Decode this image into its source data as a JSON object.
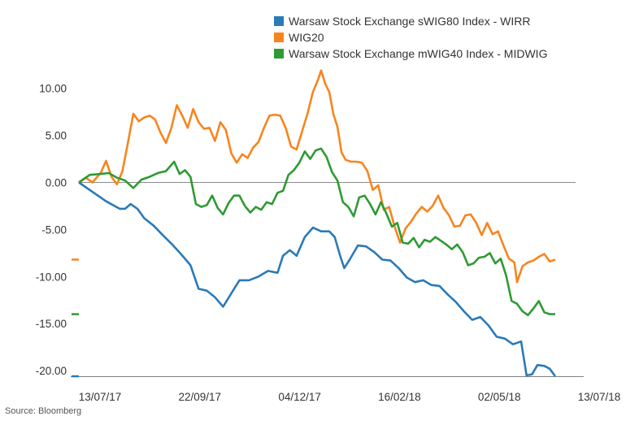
{
  "chart_data": {
    "type": "line",
    "title": "",
    "xlabel": "",
    "ylabel": "",
    "x_ticks": [
      "13/07/17",
      "22/09/17",
      "04/12/17",
      "16/02/18",
      "02/05/18",
      "13/07/18"
    ],
    "y_ticks": [
      "10.00",
      "5.00",
      "0.00",
      "-5.00",
      "-10.00",
      "-15.00",
      "-20.00"
    ],
    "ylim": [
      -20.7,
      12
    ],
    "xlim": [
      0,
      365
    ],
    "grid": false,
    "zero_line": true,
    "legend_position": "top",
    "series": [
      {
        "name": "Warsaw Stock Exchange sWIG80 Index - WIRR",
        "color": "#2a7ab8",
        "last_value": -20.6,
        "points": [
          [
            0,
            0
          ],
          [
            10,
            -1
          ],
          [
            20,
            -2
          ],
          [
            30,
            -2.8
          ],
          [
            34,
            -2.8
          ],
          [
            38,
            -2.3
          ],
          [
            43,
            -2.8
          ],
          [
            48,
            -3.8
          ],
          [
            55,
            -4.6
          ],
          [
            61,
            -5.5
          ],
          [
            68,
            -6.5
          ],
          [
            75,
            -7.6
          ],
          [
            82,
            -8.8
          ],
          [
            88,
            -11.3
          ],
          [
            94,
            -11.5
          ],
          [
            100,
            -12.2
          ],
          [
            106,
            -13.2
          ],
          [
            112,
            -11.8
          ],
          [
            118,
            -10.4
          ],
          [
            125,
            -10.4
          ],
          [
            132,
            -10
          ],
          [
            139,
            -9.4
          ],
          [
            146,
            -9.6
          ],
          [
            150,
            -7.8
          ],
          [
            155,
            -7.2
          ],
          [
            160,
            -7.8
          ],
          [
            166,
            -5.8
          ],
          [
            172,
            -4.8
          ],
          [
            178,
            -5.2
          ],
          [
            184,
            -5.2
          ],
          [
            188,
            -5.8
          ],
          [
            192,
            -7.8
          ],
          [
            195,
            -9.1
          ],
          [
            199,
            -8.2
          ],
          [
            205,
            -6.7
          ],
          [
            211,
            -6.8
          ],
          [
            217,
            -7.4
          ],
          [
            223,
            -8.2
          ],
          [
            229,
            -8.3
          ],
          [
            235,
            -9.1
          ],
          [
            241,
            -10.1
          ],
          [
            247,
            -10.6
          ],
          [
            253,
            -10.4
          ],
          [
            259,
            -10.9
          ],
          [
            265,
            -11
          ],
          [
            271,
            -11.9
          ],
          [
            277,
            -12.7
          ],
          [
            283,
            -13.7
          ],
          [
            289,
            -14.6
          ],
          [
            295,
            -14.3
          ],
          [
            301,
            -15.2
          ],
          [
            307,
            -16.4
          ],
          [
            313,
            -16.6
          ],
          [
            319,
            -17.2
          ],
          [
            325,
            -16.9
          ],
          [
            329,
            -20.5
          ],
          [
            333,
            -20.4
          ],
          [
            337,
            -19.4
          ],
          [
            342,
            -19.5
          ],
          [
            346,
            -19.8
          ],
          [
            350,
            -20.6
          ]
        ]
      },
      {
        "name": "WIG20",
        "color": "#f7851f",
        "last_value": -8.2,
        "points": [
          [
            0,
            0
          ],
          [
            5,
            0.5
          ],
          [
            10,
            0
          ],
          [
            16,
            1
          ],
          [
            20,
            2.3
          ],
          [
            24,
            0.6
          ],
          [
            28,
            -0.2
          ],
          [
            32,
            1.2
          ],
          [
            36,
            4.2
          ],
          [
            40,
            7.3
          ],
          [
            44,
            6.5
          ],
          [
            48,
            6.9
          ],
          [
            52,
            7.1
          ],
          [
            56,
            6.7
          ],
          [
            60,
            5.3
          ],
          [
            64,
            4.2
          ],
          [
            68,
            5.8
          ],
          [
            72,
            8.2
          ],
          [
            76,
            7.1
          ],
          [
            80,
            5.8
          ],
          [
            84,
            7.8
          ],
          [
            88,
            6.4
          ],
          [
            92,
            5.7
          ],
          [
            96,
            5.8
          ],
          [
            100,
            4.4
          ],
          [
            104,
            6.4
          ],
          [
            108,
            5.6
          ],
          [
            112,
            3.1
          ],
          [
            116,
            2.1
          ],
          [
            120,
            3
          ],
          [
            124,
            2.6
          ],
          [
            128,
            3.7
          ],
          [
            132,
            4.3
          ],
          [
            136,
            5.8
          ],
          [
            140,
            7.1
          ],
          [
            144,
            7.2
          ],
          [
            148,
            7.1
          ],
          [
            152,
            5.8
          ],
          [
            156,
            3.8
          ],
          [
            160,
            3.5
          ],
          [
            164,
            5.4
          ],
          [
            168,
            7.3
          ],
          [
            172,
            9.6
          ],
          [
            176,
            11
          ],
          [
            178,
            11.9
          ],
          [
            181,
            10.5
          ],
          [
            184,
            9.6
          ],
          [
            187,
            7.3
          ],
          [
            190,
            5.9
          ],
          [
            193,
            3.2
          ],
          [
            196,
            2.4
          ],
          [
            200,
            2.2
          ],
          [
            204,
            2.2
          ],
          [
            208,
            2.1
          ],
          [
            212,
            1.2
          ],
          [
            216,
            -0.8
          ],
          [
            220,
            -0.3
          ],
          [
            224,
            -2.9
          ],
          [
            228,
            -2.6
          ],
          [
            232,
            -4.7
          ],
          [
            236,
            -6.4
          ],
          [
            240,
            -4.9
          ],
          [
            244,
            -4.2
          ],
          [
            248,
            -3.3
          ],
          [
            252,
            -2.6
          ],
          [
            256,
            -3.1
          ],
          [
            260,
            -2.5
          ],
          [
            264,
            -1.4
          ],
          [
            268,
            -2.7
          ],
          [
            272,
            -3.5
          ],
          [
            276,
            -4.7
          ],
          [
            280,
            -4.6
          ],
          [
            284,
            -3.5
          ],
          [
            288,
            -3.4
          ],
          [
            292,
            -4.3
          ],
          [
            296,
            -5.6
          ],
          [
            300,
            -4.3
          ],
          [
            304,
            -5.5
          ],
          [
            308,
            -5.2
          ],
          [
            312,
            -6.7
          ],
          [
            316,
            -8.1
          ],
          [
            320,
            -8.5
          ],
          [
            322,
            -10.6
          ],
          [
            326,
            -8.9
          ],
          [
            330,
            -8.5
          ],
          [
            334,
            -8.3
          ],
          [
            338,
            -7.9
          ],
          [
            342,
            -7.6
          ],
          [
            346,
            -8.4
          ],
          [
            350,
            -8.2
          ]
        ]
      },
      {
        "name": "Warsaw Stock Exchange mWIG40 Index - MIDWIG",
        "color": "#2e9a33",
        "last_value": -14.0,
        "points": [
          [
            0,
            0
          ],
          [
            8,
            0.8
          ],
          [
            16,
            0.9
          ],
          [
            22,
            1
          ],
          [
            28,
            0.5
          ],
          [
            34,
            0.2
          ],
          [
            40,
            -0.6
          ],
          [
            46,
            0.3
          ],
          [
            52,
            0.6
          ],
          [
            58,
            1
          ],
          [
            64,
            1.2
          ],
          [
            70,
            2.2
          ],
          [
            74,
            0.9
          ],
          [
            78,
            1.3
          ],
          [
            82,
            0.6
          ],
          [
            86,
            -2.3
          ],
          [
            90,
            -2.6
          ],
          [
            94,
            -2.4
          ],
          [
            98,
            -1.4
          ],
          [
            102,
            -2.7
          ],
          [
            106,
            -3.4
          ],
          [
            110,
            -2.2
          ],
          [
            114,
            -1.4
          ],
          [
            118,
            -1.4
          ],
          [
            122,
            -2.5
          ],
          [
            126,
            -3.2
          ],
          [
            130,
            -2.6
          ],
          [
            134,
            -2.9
          ],
          [
            138,
            -2.1
          ],
          [
            142,
            -2.3
          ],
          [
            146,
            -1.1
          ],
          [
            150,
            -0.9
          ],
          [
            154,
            0.8
          ],
          [
            158,
            1.3
          ],
          [
            162,
            2.1
          ],
          [
            166,
            3.3
          ],
          [
            170,
            2.5
          ],
          [
            174,
            3.4
          ],
          [
            178,
            3.6
          ],
          [
            182,
            2.7
          ],
          [
            186,
            1.1
          ],
          [
            190,
            0.2
          ],
          [
            194,
            -2.1
          ],
          [
            198,
            -2.6
          ],
          [
            202,
            -3.6
          ],
          [
            206,
            -1.6
          ],
          [
            210,
            -1.4
          ],
          [
            214,
            -2.3
          ],
          [
            218,
            -3.4
          ],
          [
            222,
            -2.1
          ],
          [
            226,
            -3.3
          ],
          [
            230,
            -4.7
          ],
          [
            234,
            -4.3
          ],
          [
            238,
            -6.4
          ],
          [
            242,
            -6.5
          ],
          [
            246,
            -5.9
          ],
          [
            250,
            -6.9
          ],
          [
            254,
            -6.1
          ],
          [
            258,
            -6.3
          ],
          [
            262,
            -5.8
          ],
          [
            266,
            -6.2
          ],
          [
            270,
            -6.6
          ],
          [
            274,
            -7.1
          ],
          [
            278,
            -6.6
          ],
          [
            282,
            -7.4
          ],
          [
            286,
            -8.8
          ],
          [
            290,
            -8.6
          ],
          [
            294,
            -8
          ],
          [
            298,
            -7.9
          ],
          [
            302,
            -7.5
          ],
          [
            306,
            -8.6
          ],
          [
            310,
            -8.1
          ],
          [
            314,
            -9.9
          ],
          [
            318,
            -12.6
          ],
          [
            322,
            -12.9
          ],
          [
            326,
            -13.7
          ],
          [
            330,
            -14.1
          ],
          [
            334,
            -13.4
          ],
          [
            338,
            -12.6
          ],
          [
            342,
            -13.8
          ],
          [
            346,
            -14.0
          ],
          [
            350,
            -14.0
          ]
        ]
      }
    ]
  },
  "source": "Source: Bloomberg"
}
